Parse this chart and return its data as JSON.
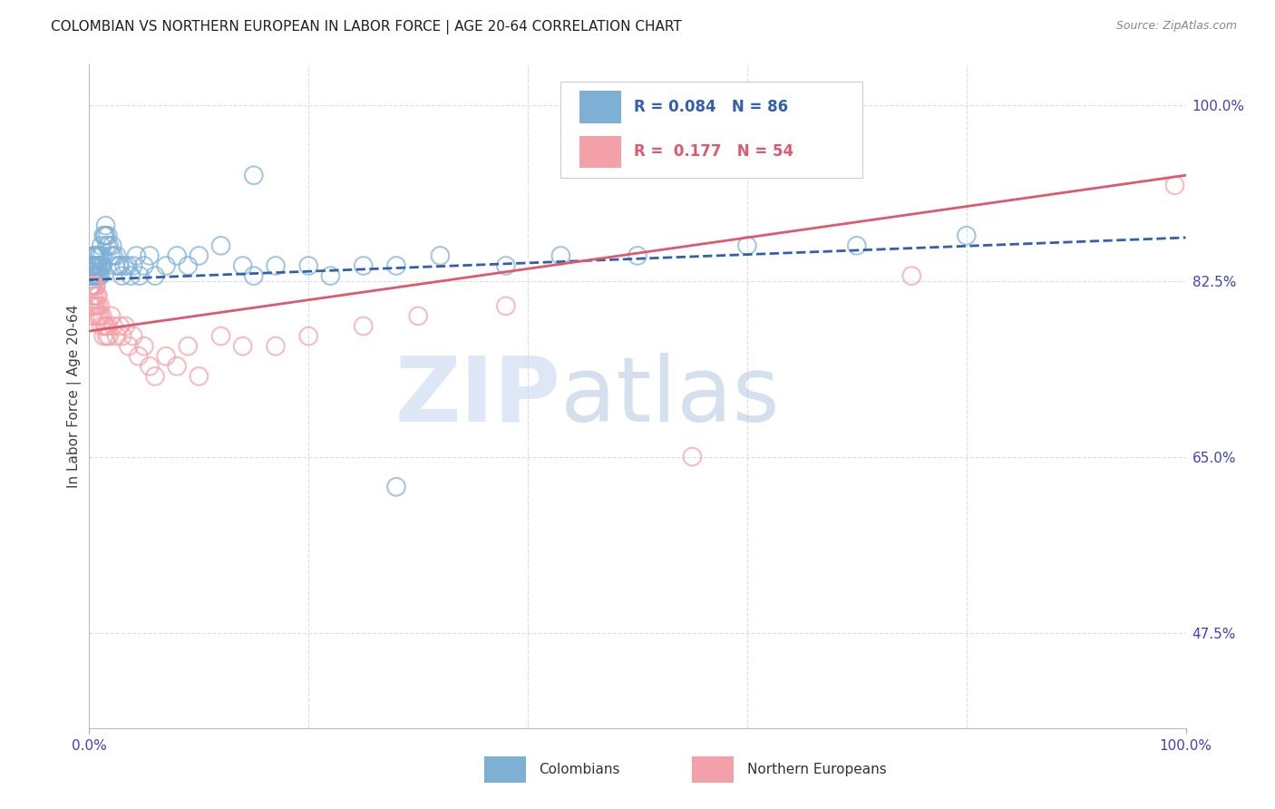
{
  "title": "COLOMBIAN VS NORTHERN EUROPEAN IN LABOR FORCE | AGE 20-64 CORRELATION CHART",
  "source": "Source: ZipAtlas.com",
  "ylabel": "In Labor Force | Age 20-64",
  "xlim": [
    0.0,
    1.0
  ],
  "ylim": [
    0.38,
    1.04
  ],
  "yticks": [
    0.475,
    0.65,
    0.825,
    1.0
  ],
  "ytick_labels": [
    "47.5%",
    "65.0%",
    "82.5%",
    "100.0%"
  ],
  "xtick_labels": [
    "0.0%",
    "100.0%"
  ],
  "blue_R": 0.084,
  "blue_N": 86,
  "pink_R": 0.177,
  "pink_N": 54,
  "blue_color": "#7EB0D5",
  "pink_color": "#F4A0A8",
  "blue_line_color": "#3060B0",
  "pink_line_color": "#E05870",
  "legend_label_blue": "Colombians",
  "legend_label_pink": "Northern Europeans",
  "watermark_line1": "ZIP",
  "watermark_line2": "atlas",
  "watermark_color": "#C8D8F0",
  "background_color": "#ffffff",
  "grid_color": "#DDDDDD",
  "title_color": "#202020",
  "blue_line_start_y": 0.826,
  "blue_line_end_y": 0.868,
  "pink_line_start_y": 0.775,
  "pink_line_end_y": 0.93,
  "blue_scatter_x": [
    0.001,
    0.001,
    0.001,
    0.002,
    0.002,
    0.002,
    0.002,
    0.002,
    0.003,
    0.003,
    0.003,
    0.003,
    0.003,
    0.004,
    0.004,
    0.004,
    0.004,
    0.004,
    0.005,
    0.005,
    0.005,
    0.005,
    0.006,
    0.006,
    0.006,
    0.006,
    0.007,
    0.007,
    0.007,
    0.008,
    0.008,
    0.008,
    0.009,
    0.009,
    0.01,
    0.01,
    0.01,
    0.011,
    0.011,
    0.012,
    0.012,
    0.013,
    0.014,
    0.015,
    0.015,
    0.016,
    0.017,
    0.018,
    0.02,
    0.021,
    0.022,
    0.024,
    0.025,
    0.027,
    0.028,
    0.03,
    0.032,
    0.035,
    0.038,
    0.04,
    0.043,
    0.046,
    0.05,
    0.055,
    0.06,
    0.07,
    0.08,
    0.09,
    0.1,
    0.12,
    0.14,
    0.15,
    0.17,
    0.2,
    0.22,
    0.25,
    0.28,
    0.32,
    0.38,
    0.43,
    0.5,
    0.6,
    0.7,
    0.8,
    0.15,
    0.28
  ],
  "blue_scatter_y": [
    0.83,
    0.82,
    0.84,
    0.83,
    0.82,
    0.84,
    0.83,
    0.82,
    0.84,
    0.83,
    0.82,
    0.84,
    0.83,
    0.85,
    0.84,
    0.83,
    0.84,
    0.83,
    0.84,
    0.83,
    0.85,
    0.84,
    0.85,
    0.84,
    0.83,
    0.82,
    0.84,
    0.83,
    0.85,
    0.84,
    0.83,
    0.84,
    0.85,
    0.83,
    0.84,
    0.83,
    0.85,
    0.84,
    0.86,
    0.85,
    0.84,
    0.87,
    0.87,
    0.88,
    0.87,
    0.86,
    0.87,
    0.86,
    0.85,
    0.86,
    0.85,
    0.84,
    0.85,
    0.84,
    0.84,
    0.83,
    0.84,
    0.84,
    0.83,
    0.84,
    0.85,
    0.83,
    0.84,
    0.85,
    0.83,
    0.84,
    0.85,
    0.84,
    0.85,
    0.86,
    0.84,
    0.83,
    0.84,
    0.84,
    0.83,
    0.84,
    0.84,
    0.85,
    0.84,
    0.85,
    0.85,
    0.86,
    0.86,
    0.87,
    0.93,
    0.62
  ],
  "pink_scatter_x": [
    0.001,
    0.001,
    0.002,
    0.002,
    0.003,
    0.003,
    0.003,
    0.004,
    0.004,
    0.005,
    0.005,
    0.006,
    0.006,
    0.007,
    0.007,
    0.008,
    0.008,
    0.009,
    0.01,
    0.01,
    0.011,
    0.012,
    0.013,
    0.014,
    0.015,
    0.016,
    0.017,
    0.018,
    0.02,
    0.022,
    0.025,
    0.028,
    0.03,
    0.033,
    0.036,
    0.04,
    0.045,
    0.05,
    0.055,
    0.06,
    0.07,
    0.08,
    0.09,
    0.1,
    0.12,
    0.14,
    0.17,
    0.2,
    0.25,
    0.3,
    0.38,
    0.55,
    0.75,
    0.99
  ],
  "pink_scatter_y": [
    0.82,
    0.8,
    0.82,
    0.8,
    0.82,
    0.81,
    0.79,
    0.82,
    0.8,
    0.81,
    0.8,
    0.82,
    0.8,
    0.81,
    0.79,
    0.81,
    0.8,
    0.79,
    0.8,
    0.79,
    0.78,
    0.79,
    0.77,
    0.78,
    0.78,
    0.77,
    0.78,
    0.77,
    0.79,
    0.78,
    0.77,
    0.78,
    0.77,
    0.78,
    0.76,
    0.77,
    0.75,
    0.76,
    0.74,
    0.73,
    0.75,
    0.74,
    0.76,
    0.73,
    0.77,
    0.76,
    0.76,
    0.77,
    0.78,
    0.79,
    0.8,
    0.65,
    0.83,
    0.92
  ]
}
